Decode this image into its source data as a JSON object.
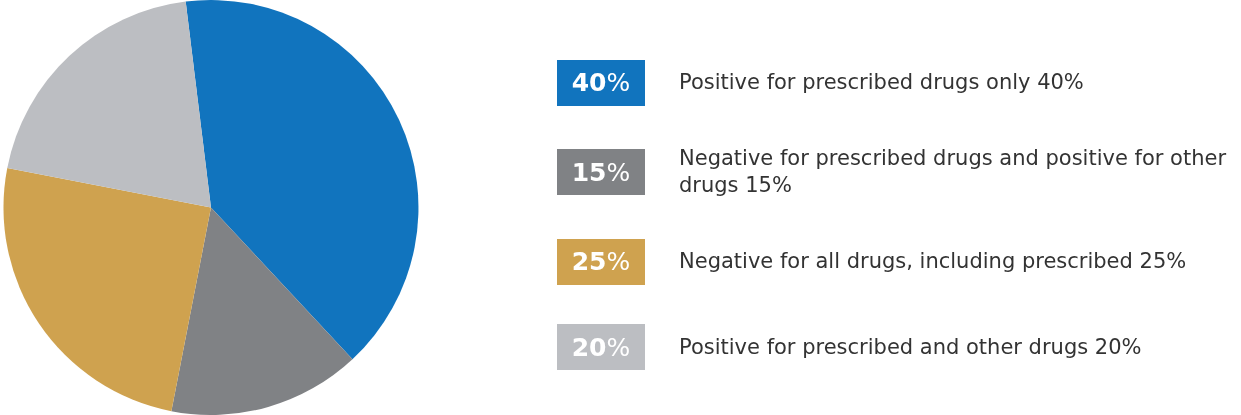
{
  "chart_data": {
    "type": "pie",
    "categories": [
      "Positive for prescribed drugs only 40%",
      "Negative for prescribed drugs and positive for other drugs 15%",
      "Negative for all drugs, including prescribed 25%",
      "Positive for prescribed and other drugs 20%"
    ],
    "values": [
      40,
      15,
      25,
      20
    ],
    "colors": [
      "#1174be",
      "#808285",
      "#cfa24f",
      "#bcbec2"
    ],
    "value_labels": [
      "40%",
      "15%",
      "25%",
      "20%"
    ],
    "legend": "right"
  }
}
